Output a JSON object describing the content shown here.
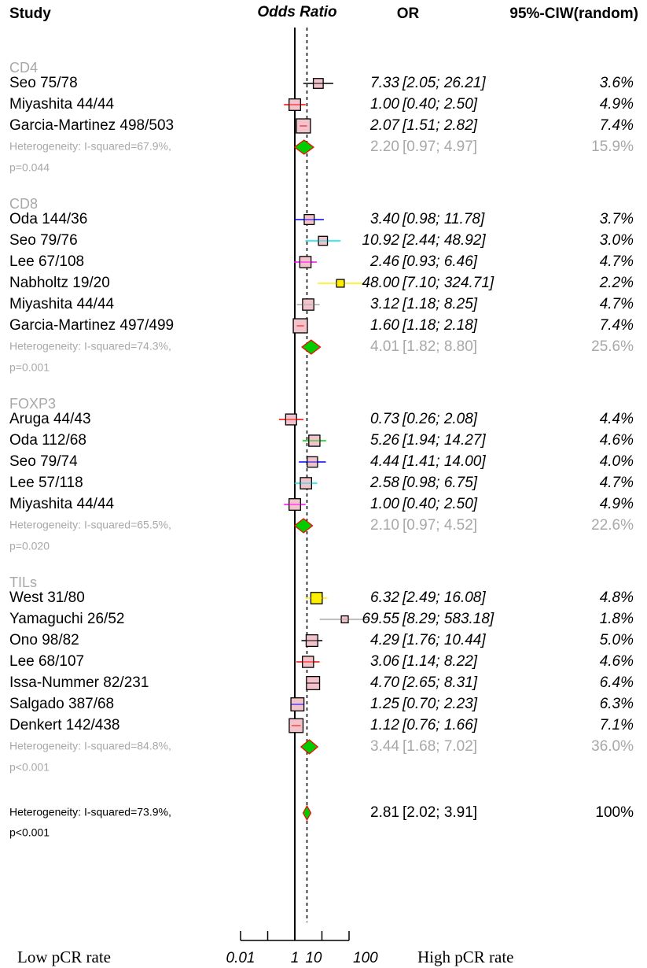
{
  "chart_data": {
    "type": "forest",
    "headers": {
      "study": "Study",
      "plot": "Odds Ratio",
      "or": "OR",
      "ci": "95%-CI",
      "weight": "W(random)"
    },
    "xscale": "log",
    "xlim": [
      0.01,
      100
    ],
    "xticks": [
      {
        "value": 0.01,
        "label": "0.01"
      },
      {
        "value": 0.1,
        "label": null
      },
      1,
      10,
      100
    ],
    "reference_line": 1,
    "left_label": "Low pCR rate",
    "right_label": "High pCR rate",
    "box_color": "#f3c3cc",
    "diamond_color": "#00cc00",
    "groups": [
      {
        "name": "CD4",
        "studies": [
          {
            "label": "Seo 75/78",
            "or": 7.33,
            "or_label": "7.33",
            "lower": 2.05,
            "upper": 26.21,
            "ci_label": "[2.05; 26.21]",
            "weight": 3.6,
            "weight_label": "3.6%",
            "color": "#000000"
          },
          {
            "label": "Miyashita 44/44",
            "or": 1.0,
            "or_label": "1.00",
            "lower": 0.4,
            "upper": 2.5,
            "ci_label": "[0.40; 2.50]",
            "weight": 4.9,
            "weight_label": "4.9%",
            "color": "#ff0000"
          },
          {
            "label": "Garcia-Martinez 498/503",
            "or": 2.07,
            "or_label": "2.07",
            "lower": 1.51,
            "upper": 2.82,
            "ci_label": "[1.51; 2.82]",
            "weight": 7.4,
            "weight_label": "7.4%",
            "color": "#ff0000"
          }
        ],
        "heterogeneity": [
          "Heterogeneity: I-squared=67.9%,",
          "p=0.044"
        ],
        "summary": {
          "or": 2.2,
          "or_label": "2.20",
          "lower": 0.97,
          "upper": 4.97,
          "ci_label": "[0.97; 4.97]",
          "weight": 15.9,
          "weight_label": "15.9%"
        }
      },
      {
        "name": "CD8",
        "studies": [
          {
            "label": "Oda 144/36",
            "or": 3.4,
            "or_label": "3.40",
            "lower": 0.98,
            "upper": 11.78,
            "ci_label": "[0.98; 11.78]",
            "weight": 3.7,
            "weight_label": "3.7%",
            "color": "#0000ff"
          },
          {
            "label": "Seo 79/76",
            "or": 10.92,
            "or_label": "10.92",
            "lower": 2.44,
            "upper": 48.92,
            "ci_label": "[2.44; 48.92]",
            "weight": 3.0,
            "weight_label": "3.0%",
            "color": "#00e5ee"
          },
          {
            "label": "Lee 67/108",
            "or": 2.46,
            "or_label": "2.46",
            "lower": 0.93,
            "upper": 6.46,
            "ci_label": "[0.93; 6.46]",
            "weight": 4.7,
            "weight_label": "4.7%",
            "color": "#ff00ff"
          },
          {
            "label": "Nabholtz 19/20",
            "or": 48.0,
            "or_label": "48.00",
            "lower": 7.1,
            "upper": 324.71,
            "ci_label": "[7.10; 324.71]",
            "weight": 2.2,
            "weight_label": "2.2%",
            "color": "#ffee00"
          },
          {
            "label": "Miyashita 44/44",
            "or": 3.12,
            "or_label": "3.12",
            "lower": 1.18,
            "upper": 8.25,
            "ci_label": "[1.18; 8.25]",
            "weight": 4.7,
            "weight_label": "4.7%",
            "color": "#aaaaaa"
          },
          {
            "label": "Garcia-Martinez 497/499",
            "or": 1.6,
            "or_label": "1.60",
            "lower": 1.18,
            "upper": 2.18,
            "ci_label": "[1.18; 2.18]",
            "weight": 7.4,
            "weight_label": "7.4%",
            "color": "#ff0000"
          }
        ],
        "heterogeneity": [
          "Heterogeneity: I-squared=74.3%,",
          "p=0.001"
        ],
        "summary": {
          "or": 4.01,
          "or_label": "4.01",
          "lower": 1.82,
          "upper": 8.8,
          "ci_label": "[1.82; 8.80]",
          "weight": 25.6,
          "weight_label": "25.6%"
        }
      },
      {
        "name": "FOXP3",
        "studies": [
          {
            "label": "Aruga 44/43",
            "or": 0.73,
            "or_label": "0.73",
            "lower": 0.26,
            "upper": 2.08,
            "ci_label": "[0.26; 2.08]",
            "weight": 4.4,
            "weight_label": "4.4%",
            "color": "#ff0000"
          },
          {
            "label": "Oda 112/68",
            "or": 5.26,
            "or_label": "5.26",
            "lower": 1.94,
            "upper": 14.27,
            "ci_label": "[1.94; 14.27]",
            "weight": 4.6,
            "weight_label": "4.6%",
            "color": "#00cc00"
          },
          {
            "label": "Seo 79/74",
            "or": 4.44,
            "or_label": "4.44",
            "lower": 1.41,
            "upper": 14.0,
            "ci_label": "[1.41; 14.00]",
            "weight": 4.0,
            "weight_label": "4.0%",
            "color": "#0000ff"
          },
          {
            "label": "Lee 57/118",
            "or": 2.58,
            "or_label": "2.58",
            "lower": 0.98,
            "upper": 6.75,
            "ci_label": "[0.98; 6.75]",
            "weight": 4.7,
            "weight_label": "4.7%",
            "color": "#00e5ee"
          },
          {
            "label": "Miyashita 44/44",
            "or": 1.0,
            "or_label": "1.00",
            "lower": 0.4,
            "upper": 2.5,
            "ci_label": "[0.40; 2.50]",
            "weight": 4.9,
            "weight_label": "4.9%",
            "color": "#ff00ff"
          }
        ],
        "heterogeneity": [
          "Heterogeneity: I-squared=65.5%,",
          "p=0.020"
        ],
        "summary": {
          "or": 2.1,
          "or_label": "2.10",
          "lower": 0.97,
          "upper": 4.52,
          "ci_label": "[0.97; 4.52]",
          "weight": 22.6,
          "weight_label": "22.6%"
        }
      },
      {
        "name": "TILs",
        "studies": [
          {
            "label": "West 31/80",
            "or": 6.32,
            "or_label": "6.32",
            "lower": 2.49,
            "upper": 16.08,
            "ci_label": "[2.49; 16.08]",
            "weight": 4.8,
            "weight_label": "4.8%",
            "color": "#ffee00"
          },
          {
            "label": "Yamaguchi 26/52",
            "or": 69.55,
            "or_label": "69.55",
            "lower": 8.29,
            "upper": 583.18,
            "ci_label": "[8.29; 583.18]",
            "weight": 1.8,
            "weight_label": "1.8%",
            "color": "#aaaaaa"
          },
          {
            "label": "Ono 98/82",
            "or": 4.29,
            "or_label": "4.29",
            "lower": 1.76,
            "upper": 10.44,
            "ci_label": "[1.76; 10.44]",
            "weight": 5.0,
            "weight_label": "5.0%",
            "color": "#000000"
          },
          {
            "label": "Lee 68/107",
            "or": 3.06,
            "or_label": "3.06",
            "lower": 1.14,
            "upper": 8.22,
            "ci_label": "[1.14; 8.22]",
            "weight": 4.6,
            "weight_label": "4.6%",
            "color": "#ff0000"
          },
          {
            "label": "Issa-Nummer 82/231",
            "or": 4.7,
            "or_label": "4.70",
            "lower": 2.65,
            "upper": 8.31,
            "ci_label": "[2.65; 8.31]",
            "weight": 6.4,
            "weight_label": "6.4%",
            "color": "#000000"
          },
          {
            "label": "Salgado 387/68",
            "or": 1.25,
            "or_label": "1.25",
            "lower": 0.7,
            "upper": 2.23,
            "ci_label": "[0.70; 2.23]",
            "weight": 6.3,
            "weight_label": "6.3%",
            "color": "#0000ff"
          },
          {
            "label": "Denkert 142/438",
            "or": 1.12,
            "or_label": "1.12",
            "lower": 0.76,
            "upper": 1.66,
            "ci_label": "[0.76; 1.66]",
            "weight": 7.1,
            "weight_label": "7.1%",
            "color": "#ff0000"
          }
        ],
        "heterogeneity": [
          "Heterogeneity: I-squared=84.8%,",
          "p<0.001"
        ],
        "summary": {
          "or": 3.44,
          "or_label": "3.44",
          "lower": 1.68,
          "upper": 7.02,
          "ci_label": "[1.68; 7.02]",
          "weight": 36.0,
          "weight_label": "36.0%"
        }
      }
    ],
    "overall": {
      "heterogeneity": [
        "Heterogeneity: I-squared=73.9%,",
        "p<0.001"
      ],
      "or": 2.81,
      "or_label": "2.81",
      "lower": 2.02,
      "upper": 3.91,
      "ci_label": "[2.02; 3.91]",
      "weight": 100,
      "weight_label": "100%"
    }
  }
}
